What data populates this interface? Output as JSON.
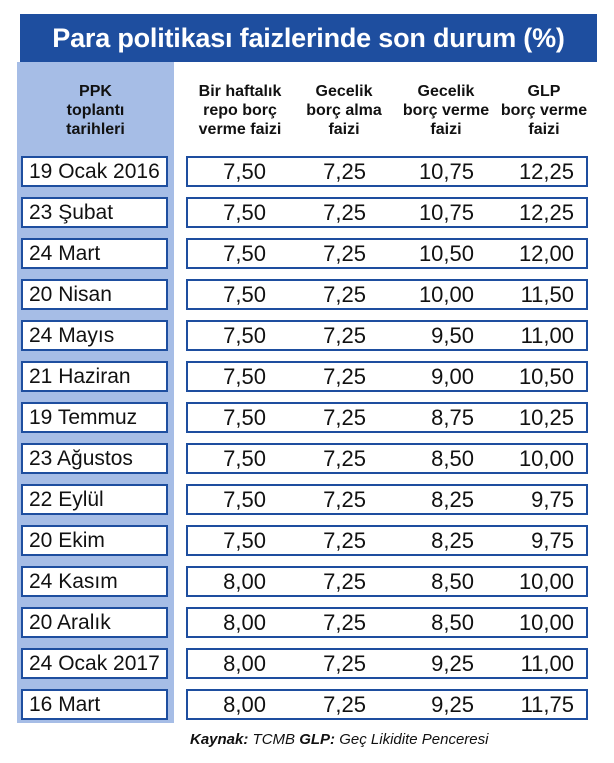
{
  "chart_data": {
    "type": "table",
    "title": "Para politikası faizlerinde son durum (%)",
    "columns": [
      "PPK\ntoplantı\ntarihleri",
      "Bir haftalık\nrepo borç\nverme faizi",
      "Gecelik\nborç alma\nfaizi",
      "Gecelik\nborç verme\nfaizi",
      "GLP\nborç verme\nfaizi"
    ],
    "rows": [
      {
        "date": "19 Ocak 2016",
        "values": [
          "7,50",
          "7,25",
          "10,75",
          "12,25"
        ]
      },
      {
        "date": "23 Şubat",
        "values": [
          "7,50",
          "7,25",
          "10,75",
          "12,25"
        ]
      },
      {
        "date": "24 Mart",
        "values": [
          "7,50",
          "7,25",
          "10,50",
          "12,00"
        ]
      },
      {
        "date": "20 Nisan",
        "values": [
          "7,50",
          "7,25",
          "10,00",
          "11,50"
        ]
      },
      {
        "date": "24 Mayıs",
        "values": [
          "7,50",
          "7,25",
          "9,50",
          "11,00"
        ]
      },
      {
        "date": "21 Haziran",
        "values": [
          "7,50",
          "7,25",
          "9,00",
          "10,50"
        ]
      },
      {
        "date": "19 Temmuz",
        "values": [
          "7,50",
          "7,25",
          "8,75",
          "10,25"
        ]
      },
      {
        "date": "23 Ağustos",
        "values": [
          "7,50",
          "7,25",
          "8,50",
          "10,00"
        ]
      },
      {
        "date": "22 Eylül",
        "values": [
          "7,50",
          "7,25",
          "8,25",
          "9,75"
        ]
      },
      {
        "date": "20 Ekim",
        "values": [
          "7,50",
          "7,25",
          "8,25",
          "9,75"
        ]
      },
      {
        "date": "24 Kasım",
        "values": [
          "8,00",
          "7,25",
          "8,50",
          "10,00"
        ]
      },
      {
        "date": "20 Aralık",
        "values": [
          "8,00",
          "7,25",
          "8,50",
          "10,00"
        ]
      },
      {
        "date": "24 Ocak 2017",
        "values": [
          "8,00",
          "7,25",
          "9,25",
          "11,00"
        ]
      },
      {
        "date": "16 Mart",
        "values": [
          "8,00",
          "7,25",
          "9,25",
          "11,75"
        ]
      }
    ],
    "source": {
      "label1": "Kaynak:",
      "text1": "TCMB",
      "label2": "GLP:",
      "text2": "Geç Likidite Penceresi"
    }
  },
  "colors": {
    "accent": "#1e4e9f",
    "band": "#a6bde6",
    "text": "#111111"
  }
}
